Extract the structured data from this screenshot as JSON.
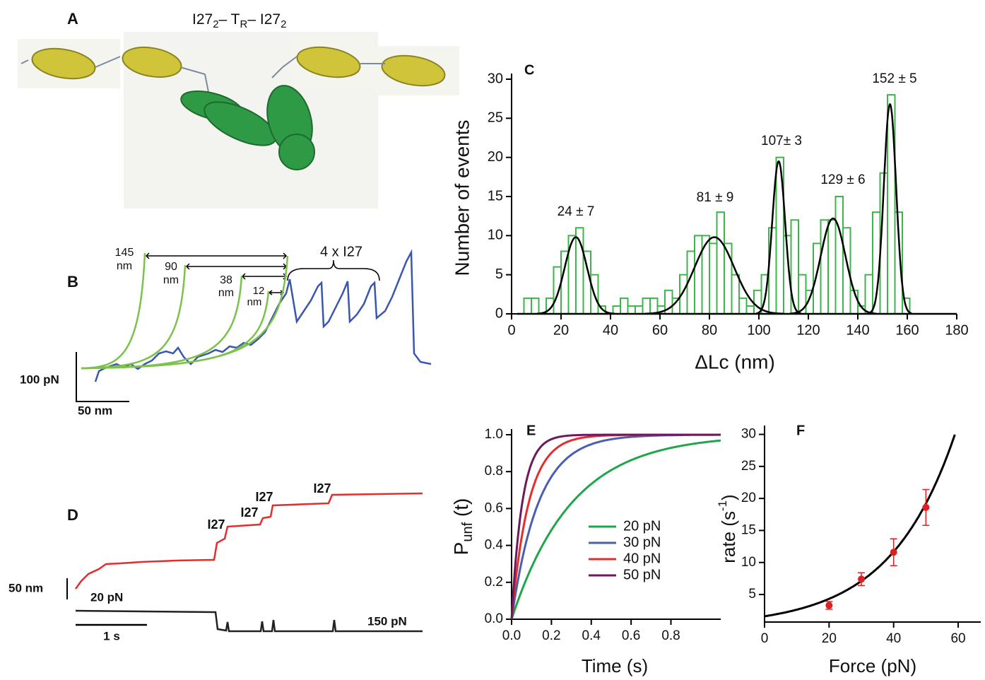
{
  "chart_data": [
    {
      "type": "image",
      "panel": "A",
      "title": [
        "I27",
        "2",
        "– T",
        "R",
        "– I27",
        "2"
      ]
    },
    {
      "type": "trace",
      "panel": "B",
      "distance_labels": [
        [
          "145",
          "nm"
        ],
        [
          "90",
          "nm"
        ],
        [
          "38",
          "nm"
        ],
        [
          "12",
          "nm"
        ]
      ],
      "annotation": "4 x I27",
      "scale_bars": [
        "100 pN",
        "50 nm"
      ]
    },
    {
      "type": "histogram",
      "panel": "C",
      "xlabel": "ΔLc (nm)",
      "ylabel": "Number of events",
      "color": "#3db54a",
      "bins": [
        5,
        8,
        11,
        14,
        17,
        20,
        23,
        26,
        29,
        32,
        35,
        38,
        41,
        44,
        47,
        50,
        53,
        56,
        59,
        62,
        65,
        68,
        71,
        74,
        77,
        80,
        83,
        86,
        89,
        92,
        95,
        98,
        101,
        104,
        107,
        110,
        113,
        116,
        119,
        122,
        125,
        128,
        131,
        134,
        137,
        140,
        143,
        146,
        149,
        152,
        155,
        158,
        161
      ],
      "values": [
        2,
        2,
        0,
        2,
        6,
        8,
        10,
        11,
        8,
        5,
        1,
        0,
        1,
        2,
        1,
        1,
        2,
        2,
        1,
        3,
        2,
        5,
        8,
        10,
        10,
        9,
        13,
        9,
        5,
        2,
        1,
        3,
        5,
        11,
        20,
        10,
        12,
        5,
        3,
        9,
        12,
        12,
        15,
        11,
        3,
        1,
        5,
        13,
        18,
        28,
        13,
        2
      ],
      "xlim": [
        0,
        180
      ],
      "xticks": [
        0,
        20,
        40,
        60,
        80,
        100,
        120,
        140,
        160,
        180
      ],
      "ylim": [
        0,
        30
      ],
      "yticks": [
        0,
        5,
        10,
        15,
        20,
        25,
        30
      ],
      "fit_color": "#000000",
      "fits": [
        {
          "mean": 26,
          "sd": 4.5,
          "amplitude": 9.8
        },
        {
          "mean": 82,
          "sd": 8,
          "amplitude": 9.8
        },
        {
          "mean": 108,
          "sd": 2.6,
          "amplitude": 19.5
        },
        {
          "mean": 130,
          "sd": 5,
          "amplitude": 12.2
        },
        {
          "mean": 153,
          "sd": 2.5,
          "amplitude": 26.8
        }
      ],
      "peak_labels": [
        "24 ± 7",
        "81 ± 9",
        "107± 3",
        "129 ± 6",
        "152 ± 5"
      ]
    },
    {
      "type": "trace",
      "panel": "D",
      "step_labels": [
        "I27",
        "I27",
        "I27",
        "I27"
      ],
      "scale_bars": [
        "50 nm",
        "1 s"
      ],
      "force_labels": [
        "20 pN",
        "150 pN"
      ]
    },
    {
      "type": "line",
      "panel": "E",
      "xlabel": "Time (s)",
      "ylabel": [
        "P",
        "unf",
        " (t)"
      ],
      "series": [
        {
          "name": "20 pN",
          "color": "#1fa64a",
          "rate": 3.3
        },
        {
          "name": "30 pN",
          "color": "#4a5fb0",
          "rate": 7.4
        },
        {
          "name": "40 pN",
          "color": "#e52d2d",
          "rate": 11.6
        },
        {
          "name": "50 pN",
          "color": "#6d1a5a",
          "rate": 18.6
        }
      ],
      "xlim": [
        0,
        1.05
      ],
      "xticks": [
        {
          "value": 0,
          "label": "0.0"
        },
        0.2,
        0.4,
        0.6,
        0.8
      ],
      "ylim": [
        0,
        1
      ],
      "yticks": [
        {
          "value": 0,
          "label": "0.0"
        },
        0.2,
        0.4,
        0.6,
        0.8,
        {
          "value": 1,
          "label": "1.0"
        }
      ]
    },
    {
      "type": "scatter",
      "panel": "F",
      "xlabel": "Force (pN)",
      "ylabel": [
        "rate (s",
        "-1",
        ")"
      ],
      "color": "#e02020",
      "x": [
        20,
        30,
        40,
        50
      ],
      "values": [
        3.3,
        7.4,
        11.6,
        18.6
      ],
      "errors": [
        0.6,
        1.0,
        2.1,
        2.8
      ],
      "fit": {
        "a": 1.6,
        "b": 0.0497
      },
      "xlim": [
        0,
        67
      ],
      "xticks": [
        0,
        20,
        40,
        60
      ],
      "ylim": [
        0.7,
        30.5
      ],
      "yticks": [
        5,
        10,
        15,
        20,
        25,
        30
      ]
    }
  ]
}
